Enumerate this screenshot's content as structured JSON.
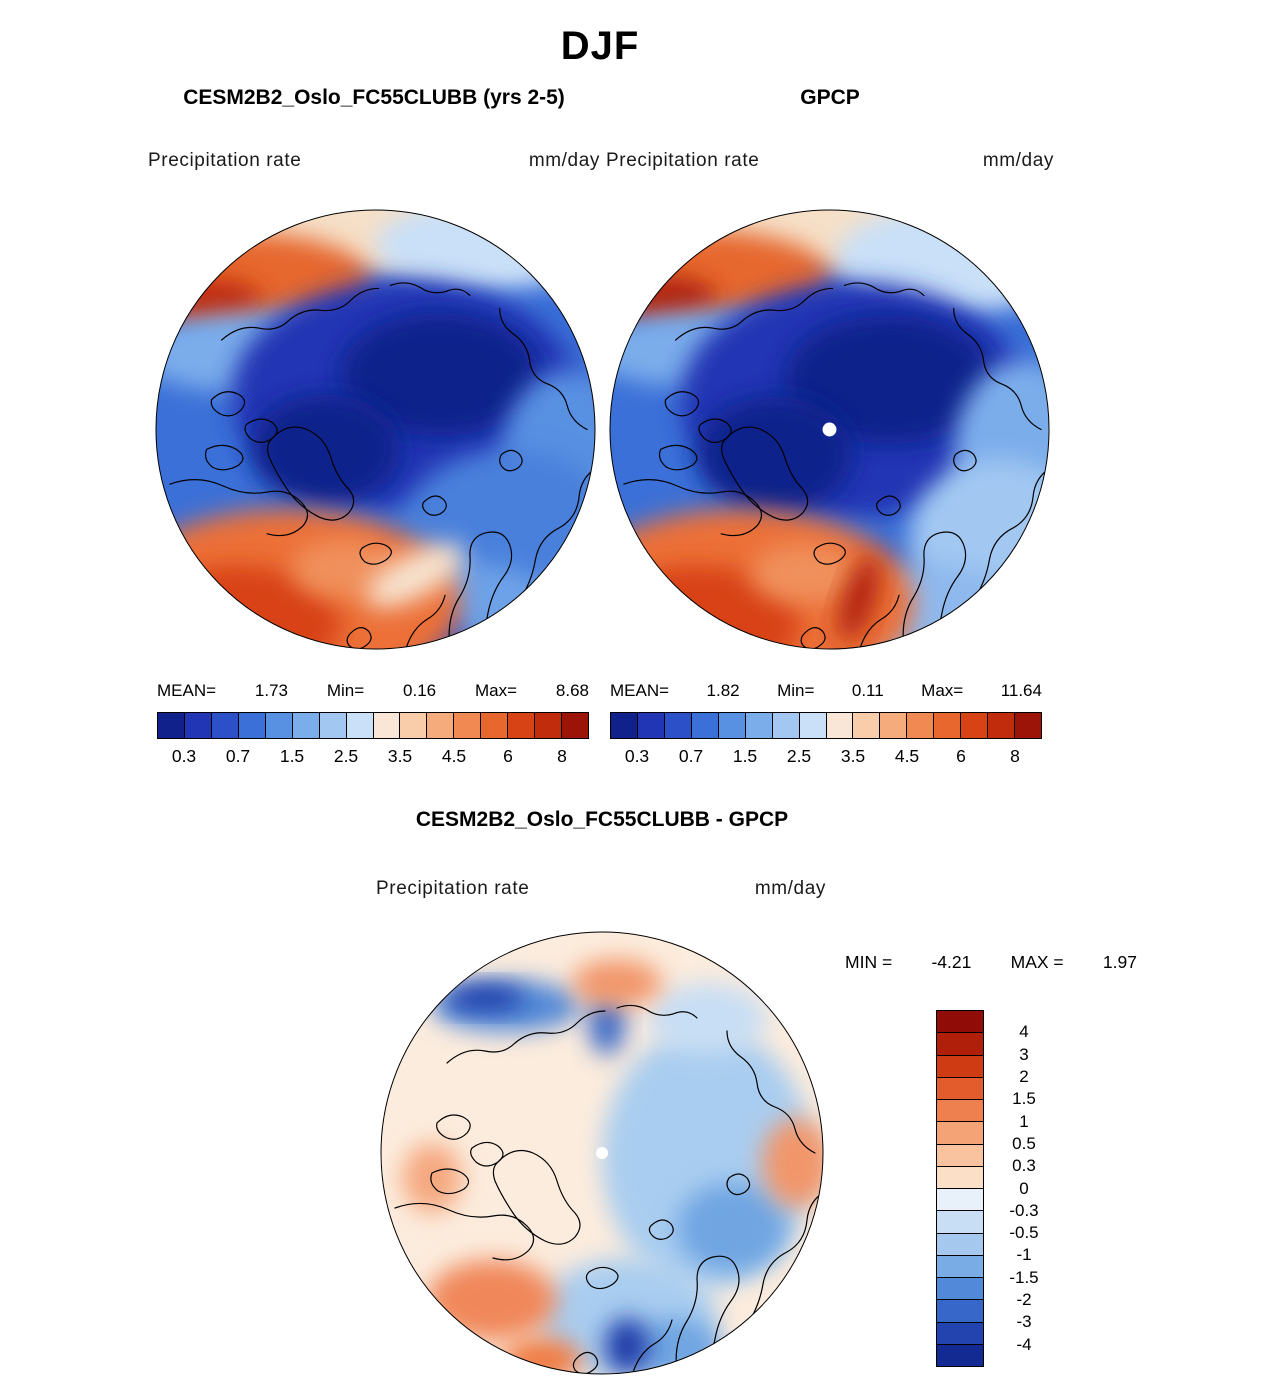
{
  "title": "DJF",
  "model_panel": {
    "title": "CESM2B2_Oslo_FC55CLUBB (yrs 2-5)",
    "field": "Precipitation rate",
    "units": "mm/day",
    "mean_label": "MEAN=",
    "mean": "1.73",
    "min_label": "Min=",
    "min": "0.16",
    "max_label": "Max=",
    "max": "8.68"
  },
  "obs_panel": {
    "title": "GPCP",
    "field": "Precipitation rate",
    "units": "mm/day",
    "mean_label": "MEAN=",
    "mean": "1.82",
    "min_label": "Min=",
    "min": "0.11",
    "max_label": "Max=",
    "max": "11.64"
  },
  "diff_panel": {
    "title": "CESM2B2_Oslo_FC55CLUBB - GPCP",
    "field": "Precipitation rate",
    "units": "mm/day",
    "min_label": "MIN =",
    "min": "-4.21",
    "max_label": "MAX =",
    "max": "1.97"
  },
  "precip_colorbar": {
    "ticks": [
      "0.3",
      "0.7",
      "1.5",
      "2.5",
      "3.5",
      "4.5",
      "6",
      "8"
    ],
    "colors": [
      "#10218b",
      "#2036b4",
      "#2c50c8",
      "#3b70d8",
      "#5890e2",
      "#7cadeb",
      "#a2c8f2",
      "#c9e0f8",
      "#fae6d7",
      "#f9cda9",
      "#f5ab7c",
      "#f08a52",
      "#e7672f",
      "#d84315",
      "#c02c0c",
      "#9c1407"
    ]
  },
  "diff_colorbar": {
    "ticks": [
      "4",
      "3",
      "2",
      "1.5",
      "1",
      "0.5",
      "0.3",
      "0",
      "-0.3",
      "-0.5",
      "-1",
      "-1.5",
      "-2",
      "-3",
      "-4"
    ],
    "colors": [
      "#8f0d06",
      "#b01f0a",
      "#cf3b12",
      "#e25c2c",
      "#ee7f4f",
      "#f4a376",
      "#f8c39e",
      "#fbdfc6",
      "#e8f0f9",
      "#c8def4",
      "#a4c8ee",
      "#79abe4",
      "#5289d8",
      "#3767c8",
      "#2344ae",
      "#132a92"
    ]
  },
  "chart_data": [
    {
      "type": "heatmap",
      "title": "CESM2B2_Oslo_FC55CLUBB (yrs 2-5)",
      "season": "DJF",
      "variable": "Precipitation rate",
      "units": "mm/day",
      "projection": "north polar stereographic",
      "stats": {
        "mean": 1.73,
        "min": 0.16,
        "max": 8.68
      },
      "contour_levels": [
        0.3,
        0.7,
        1.5,
        2.5,
        3.5,
        4.5,
        6,
        8
      ],
      "colormap": "blue (low) to red (high)",
      "legend_position": "bottom"
    },
    {
      "type": "heatmap",
      "title": "GPCP",
      "season": "DJF",
      "variable": "Precipitation rate",
      "units": "mm/day",
      "projection": "north polar stereographic",
      "stats": {
        "mean": 1.82,
        "min": 0.11,
        "max": 11.64
      },
      "contour_levels": [
        0.3,
        0.7,
        1.5,
        2.5,
        3.5,
        4.5,
        6,
        8
      ],
      "colormap": "blue (low) to red (high)",
      "legend_position": "bottom"
    },
    {
      "type": "heatmap",
      "title": "CESM2B2_Oslo_FC55CLUBB - GPCP",
      "season": "DJF",
      "variable": "Precipitation rate difference",
      "units": "mm/day",
      "projection": "north polar stereographic",
      "stats": {
        "min": -4.21,
        "max": 1.97
      },
      "contour_levels": [
        -4,
        -3,
        -2,
        -1.5,
        -1,
        -0.5,
        -0.3,
        0,
        0.3,
        0.5,
        1,
        1.5,
        2,
        3,
        4
      ],
      "colormap": "red (positive) to blue (negative)",
      "legend_position": "right"
    }
  ]
}
